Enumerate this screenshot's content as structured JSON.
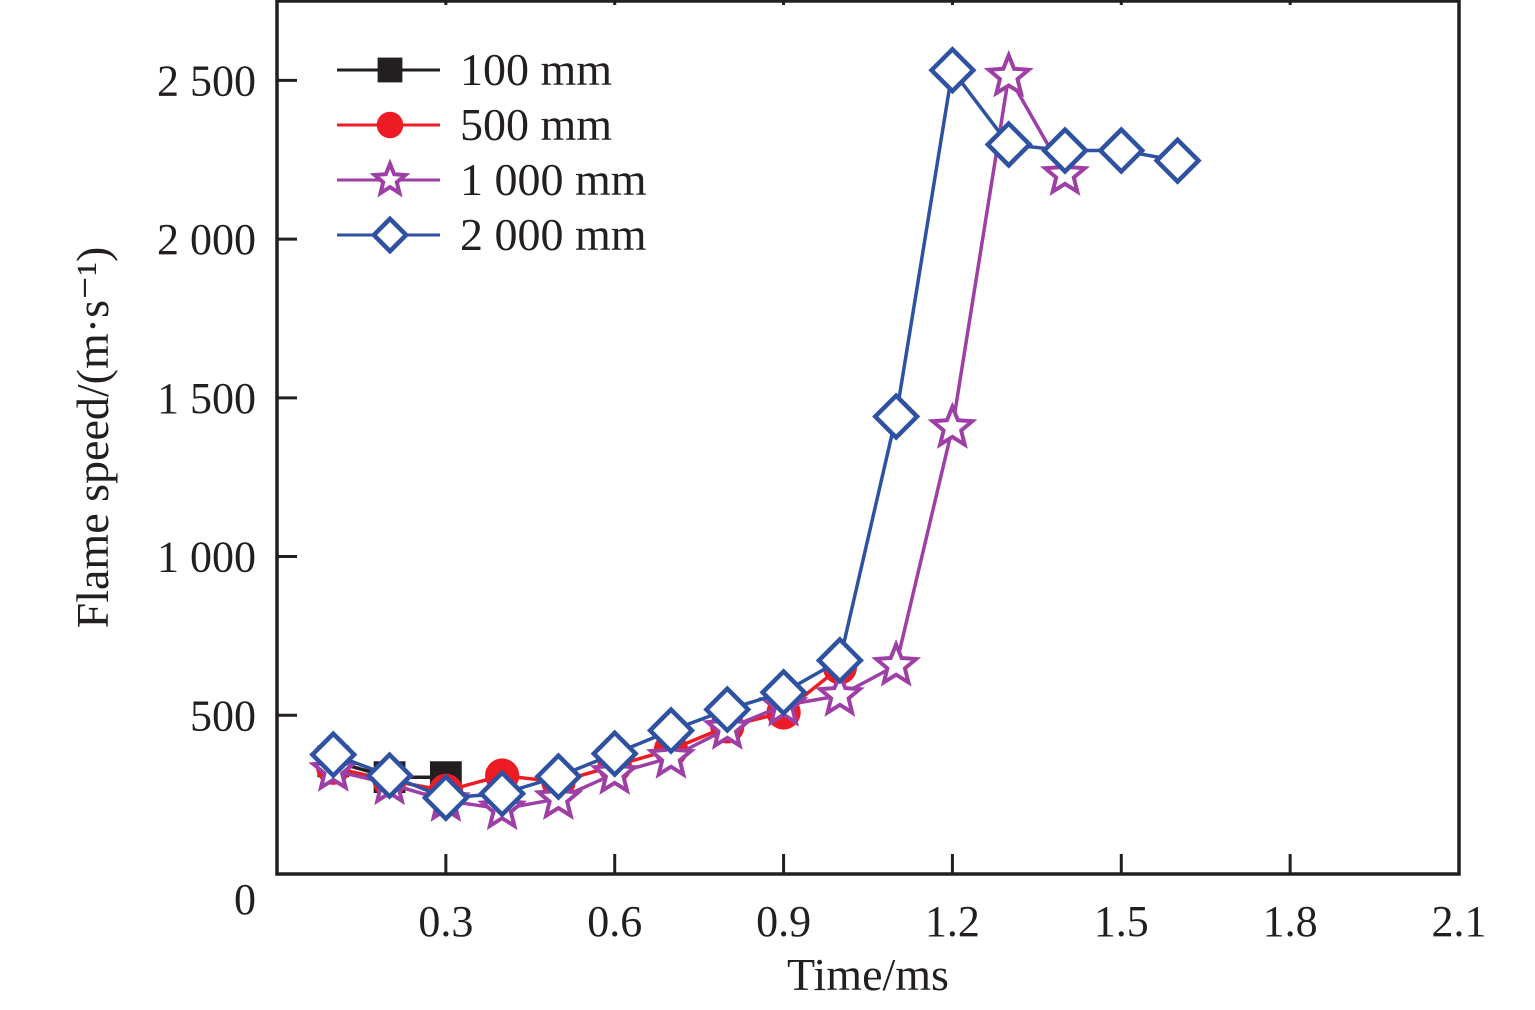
{
  "chart_data": {
    "type": "line",
    "title": "",
    "xlabel": "Time/ms",
    "ylabel": "Flame speed/(m·s⁻¹)",
    "xlim": [
      0,
      2.1
    ],
    "ylim": [
      0,
      2750
    ],
    "xticks": [
      0.3,
      0.6,
      0.9,
      1.2,
      1.5,
      1.8,
      2.1
    ],
    "xtick_labels": [
      "0.3",
      "0.6",
      "0.9",
      "1.2",
      "1.5",
      "1.8",
      "2.1"
    ],
    "yticks": [
      0,
      500,
      1000,
      1500,
      2000,
      2500
    ],
    "ytick_labels": [
      "0",
      "500",
      "1 000",
      "1 500",
      "2 000",
      "2 500"
    ],
    "grid": false,
    "legend_position": "top-left",
    "series": [
      {
        "name": "100 mm",
        "color": "#231f20",
        "marker": "square",
        "x": [
          0.1,
          0.2,
          0.3
        ],
        "y": [
          355,
          305,
          305
        ]
      },
      {
        "name": "500 mm",
        "color": "#ed1c24",
        "marker": "circle",
        "x": [
          0.1,
          0.2,
          0.3,
          0.4,
          0.5,
          0.6,
          0.7,
          0.8,
          0.9,
          1.0
        ],
        "y": [
          335,
          295,
          262,
          310,
          290,
          341,
          392,
          465,
          509,
          651
        ]
      },
      {
        "name": "1 000 mm",
        "color": "#9e3fa6",
        "marker": "star",
        "x": [
          0.1,
          0.2,
          0.3,
          0.4,
          0.5,
          0.6,
          0.7,
          0.8,
          0.9,
          1.0,
          1.1,
          1.2,
          1.3,
          1.4
        ],
        "y": [
          326,
          284,
          231,
          205,
          237,
          316,
          367,
          458,
          531,
          562,
          657,
          1406,
          2513,
          2203
        ]
      },
      {
        "name": "2 000 mm",
        "color": "#2e52a1",
        "marker": "diamond-open",
        "x": [
          0.1,
          0.2,
          0.3,
          0.4,
          0.5,
          0.6,
          0.7,
          0.8,
          0.9,
          1.0,
          1.1,
          1.2,
          1.3,
          1.4,
          1.5,
          1.6
        ],
        "y": [
          376,
          310,
          240,
          253,
          307,
          379,
          452,
          518,
          572,
          673,
          1441,
          2532,
          2298,
          2279,
          2279,
          2247
        ]
      }
    ]
  }
}
